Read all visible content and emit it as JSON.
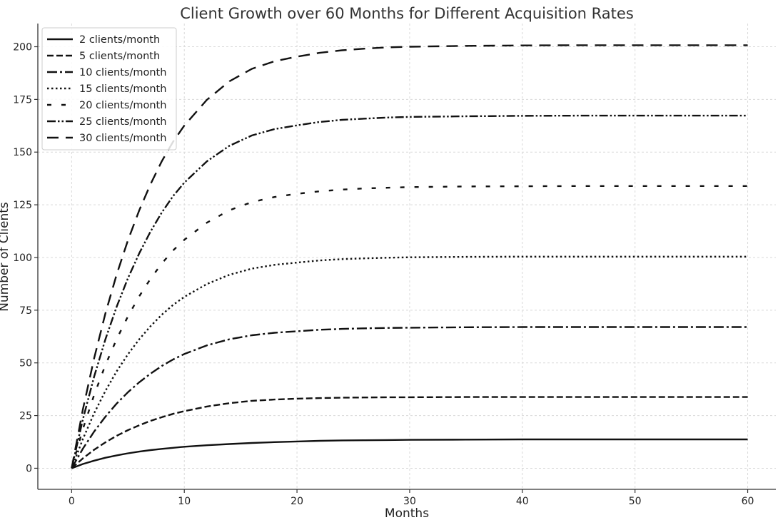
{
  "chart_data": {
    "type": "line",
    "title": "Client Growth over 60 Months for Different Acquisition Rates",
    "xlabel": "Months",
    "ylabel": "Number of Clients",
    "xlim": [
      -3,
      62.5
    ],
    "ylim": [
      -10,
      211
    ],
    "x_ticks": [
      0,
      10,
      20,
      30,
      40,
      50,
      60
    ],
    "y_ticks": [
      0,
      25,
      50,
      75,
      100,
      125,
      150,
      175,
      200
    ],
    "grid": true,
    "legend_position": "top-left",
    "line_color": "#111111",
    "x": [
      0,
      1,
      2,
      3,
      4,
      5,
      6,
      7,
      8,
      9,
      10,
      12,
      14,
      16,
      18,
      20,
      22,
      24,
      26,
      28,
      30,
      35,
      40,
      45,
      50,
      55,
      60
    ],
    "series": [
      {
        "name": "2 clients/month",
        "dash": "solid",
        "values": [
          0,
          2.0,
          3.6,
          5.0,
          6.1,
          7.1,
          7.9,
          8.6,
          9.2,
          9.7,
          10.2,
          10.9,
          11.5,
          12.0,
          12.4,
          12.7,
          13.0,
          13.2,
          13.3,
          13.4,
          13.5,
          13.6,
          13.7,
          13.7,
          13.7,
          13.7,
          13.7
        ]
      },
      {
        "name": "5 clients/month",
        "dash": "dashed",
        "values": [
          0,
          4.7,
          8.8,
          12.3,
          15.4,
          18.1,
          20.4,
          22.5,
          24.2,
          25.8,
          27.1,
          29.3,
          30.9,
          32.0,
          32.6,
          33.0,
          33.3,
          33.5,
          33.6,
          33.7,
          33.7,
          33.8,
          33.8,
          33.8,
          33.8,
          33.8,
          33.8
        ]
      },
      {
        "name": "10 clients/month",
        "dash": "dashdot",
        "values": [
          0,
          9.3,
          17.4,
          24.5,
          30.7,
          36.1,
          40.8,
          44.9,
          48.5,
          51.6,
          54.2,
          58.3,
          61.2,
          63.1,
          64.3,
          65.0,
          65.7,
          66.1,
          66.4,
          66.6,
          66.7,
          66.9,
          67.0,
          67.0,
          67.0,
          67.0,
          67.0
        ]
      },
      {
        "name": "15 clients/month",
        "dash": "dotted",
        "values": [
          0,
          13.9,
          26.1,
          36.7,
          46.0,
          54.1,
          61.2,
          67.4,
          72.8,
          77.5,
          81.3,
          87.4,
          91.8,
          94.7,
          96.5,
          97.6,
          98.6,
          99.2,
          99.6,
          99.9,
          100.1,
          100.3,
          100.4,
          100.4,
          100.4,
          100.4,
          100.4
        ]
      },
      {
        "name": "20 clients/month",
        "dash": "sparse-dashed",
        "values": [
          0,
          18.6,
          34.8,
          49.0,
          61.3,
          72.1,
          81.6,
          89.9,
          97.1,
          103.3,
          108.4,
          116.5,
          122.4,
          126.3,
          128.7,
          130.2,
          131.4,
          132.2,
          132.8,
          133.1,
          133.4,
          133.7,
          133.8,
          133.9,
          133.9,
          133.9,
          133.9
        ]
      },
      {
        "name": "25 clients/month",
        "dash": "dashdotdot",
        "values": [
          0,
          23.2,
          43.5,
          61.2,
          76.7,
          90.2,
          102.0,
          112.3,
          121.3,
          129.1,
          135.5,
          145.6,
          153.0,
          157.9,
          160.9,
          162.7,
          164.3,
          165.3,
          165.9,
          166.4,
          166.7,
          167.0,
          167.2,
          167.3,
          167.3,
          167.3,
          167.3
        ]
      },
      {
        "name": "30 clients/month",
        "dash": "long-dashed",
        "values": [
          0,
          27.9,
          52.2,
          73.5,
          92.0,
          108.2,
          122.4,
          134.8,
          145.6,
          154.9,
          162.6,
          174.8,
          183.6,
          189.5,
          193.1,
          195.3,
          197.1,
          198.3,
          199.1,
          199.7,
          200.0,
          200.4,
          200.6,
          200.7,
          200.7,
          200.7,
          200.7
        ]
      }
    ]
  }
}
